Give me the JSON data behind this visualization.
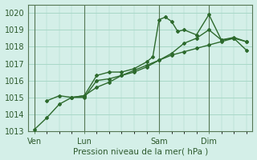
{
  "bg_color": "#d4efe8",
  "grid_color": "#a8d8c8",
  "line_color": "#2d6a2d",
  "xlabel": "Pression niveau de la mer( hPa )",
  "ylim": [
    1013,
    1020.5
  ],
  "yticks": [
    1013,
    1014,
    1015,
    1016,
    1017,
    1018,
    1019,
    1020
  ],
  "day_labels": [
    "Ven",
    "Lun",
    "Sam",
    "Dim"
  ],
  "day_positions": [
    0,
    4,
    10,
    14
  ],
  "xlim": [
    -0.5,
    17.5
  ],
  "line1_x": [
    0,
    1,
    2,
    3,
    4,
    5,
    6,
    7,
    8,
    9,
    10,
    11,
    12,
    13,
    14,
    15,
    16,
    17
  ],
  "line1_y": [
    1013.1,
    1013.8,
    1014.6,
    1015.0,
    1015.1,
    1015.6,
    1015.9,
    1016.3,
    1016.6,
    1016.9,
    1017.2,
    1017.5,
    1017.7,
    1017.9,
    1018.1,
    1018.3,
    1018.5,
    1017.8
  ],
  "line2_x": [
    1,
    2,
    3,
    4,
    5,
    6,
    7,
    8,
    9,
    10,
    11,
    12,
    13,
    14,
    15,
    16,
    17
  ],
  "line2_y": [
    1014.8,
    1015.1,
    1015.0,
    1015.0,
    1016.0,
    1016.1,
    1016.3,
    1016.5,
    1016.8,
    1017.2,
    1017.6,
    1018.2,
    1018.5,
    1019.0,
    1018.4,
    1018.5,
    1018.3
  ],
  "line3_x": [
    3,
    4,
    5,
    6,
    7,
    8,
    9,
    9.5,
    10,
    10.5,
    11,
    11.5,
    12,
    13,
    14,
    15,
    16,
    17
  ],
  "line3_y": [
    1015.0,
    1015.1,
    1016.3,
    1016.5,
    1016.5,
    1016.7,
    1017.1,
    1017.4,
    1019.6,
    1019.75,
    1019.5,
    1018.9,
    1019.0,
    1018.7,
    1019.9,
    1018.4,
    1018.55,
    1018.3
  ],
  "lw": 1.0
}
